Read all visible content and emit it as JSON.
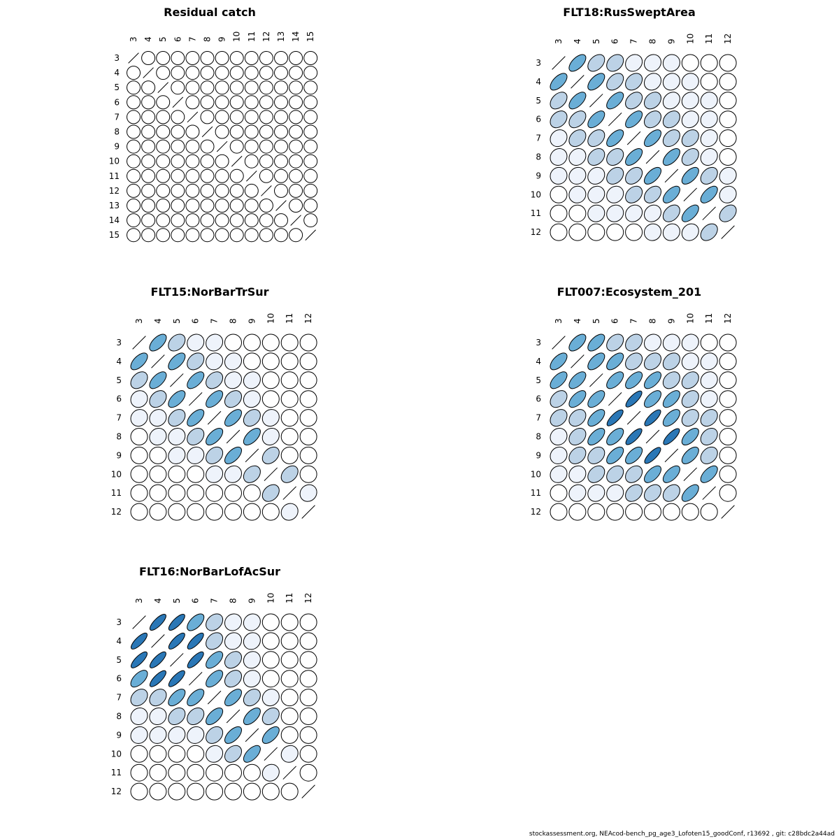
{
  "colors": {
    "light": "#eef3fb",
    "mid": "#bcd2e6",
    "strong": "#6aaed6",
    "dark": "#2a77b6",
    "none": "#ffffff",
    "stroke": "#000000"
  },
  "chart_data": [
    {
      "type": "heatmap",
      "style": "ellipse correlation matrix",
      "title": "Residual catch",
      "labels": [
        "3",
        "4",
        "5",
        "6",
        "7",
        "8",
        "9",
        "10",
        "11",
        "12",
        "13",
        "14",
        "15"
      ],
      "correlation_rule": "all off-diagonal correlations ~0; diagonal drawn as line",
      "correlations": []
    },
    {
      "type": "heatmap",
      "style": "ellipse correlation matrix",
      "title": "FLT18:RusSweptArea",
      "labels": [
        "3",
        "4",
        "5",
        "6",
        "7",
        "8",
        "9",
        "10",
        "11",
        "12"
      ],
      "correlations": [
        [
          null,
          0.6,
          0.4,
          0.3,
          0.15,
          0.1,
          0.05,
          0.0,
          0.0,
          0.0
        ],
        [
          0.6,
          null,
          0.6,
          0.4,
          0.3,
          0.15,
          0.1,
          0.05,
          0.0,
          0.0
        ],
        [
          0.4,
          0.6,
          null,
          0.6,
          0.35,
          0.3,
          0.2,
          0.1,
          0.05,
          0.0
        ],
        [
          0.3,
          0.4,
          0.6,
          null,
          0.6,
          0.3,
          0.3,
          0.15,
          0.1,
          0.0
        ],
        [
          0.15,
          0.3,
          0.35,
          0.6,
          null,
          0.6,
          0.35,
          0.3,
          0.15,
          0.0
        ],
        [
          0.1,
          0.15,
          0.3,
          0.3,
          0.6,
          null,
          0.6,
          0.35,
          0.15,
          0.0
        ],
        [
          0.05,
          0.1,
          0.15,
          0.3,
          0.35,
          0.6,
          null,
          0.6,
          0.35,
          0.1
        ],
        [
          0.0,
          0.05,
          0.1,
          0.15,
          0.3,
          0.35,
          0.6,
          null,
          0.6,
          0.1
        ],
        [
          0.0,
          0.0,
          0.05,
          0.1,
          0.15,
          0.15,
          0.35,
          0.6,
          null,
          0.35
        ],
        [
          0.0,
          0.0,
          0.0,
          0.0,
          0.0,
          0.05,
          0.1,
          0.15,
          0.35,
          null
        ]
      ]
    },
    {
      "type": "heatmap",
      "style": "ellipse correlation matrix",
      "title": "FLT15:NorBarTrSur",
      "labels": [
        "3",
        "4",
        "5",
        "6",
        "7",
        "8",
        "9",
        "10",
        "11",
        "12"
      ],
      "correlations": [
        [
          null,
          0.6,
          0.35,
          0.1,
          0.1,
          0.0,
          0.0,
          0.0,
          0.0,
          0.0
        ],
        [
          0.6,
          null,
          0.6,
          0.3,
          0.1,
          0.1,
          0.0,
          0.0,
          0.0,
          0.0
        ],
        [
          0.35,
          0.6,
          null,
          0.6,
          0.3,
          0.1,
          0.1,
          0.0,
          0.0,
          0.0
        ],
        [
          0.1,
          0.3,
          0.6,
          null,
          0.6,
          0.3,
          0.1,
          0.0,
          0.0,
          0.0
        ],
        [
          0.1,
          0.1,
          0.3,
          0.6,
          null,
          0.6,
          0.3,
          0.1,
          0.0,
          0.0
        ],
        [
          0.0,
          0.1,
          0.1,
          0.3,
          0.6,
          null,
          0.6,
          0.15,
          0.0,
          0.0
        ],
        [
          0.0,
          0.0,
          0.1,
          0.1,
          0.3,
          0.6,
          null,
          0.35,
          0.0,
          0.0
        ],
        [
          0.0,
          0.0,
          0.0,
          0.0,
          0.1,
          0.1,
          0.3,
          null,
          0.35,
          0.0
        ],
        [
          0.0,
          0.0,
          0.0,
          0.0,
          0.0,
          0.0,
          0.0,
          0.3,
          null,
          0.1
        ],
        [
          0.0,
          0.0,
          0.0,
          0.0,
          0.0,
          0.0,
          0.0,
          0.0,
          0.1,
          null
        ]
      ]
    },
    {
      "type": "heatmap",
      "style": "ellipse correlation matrix",
      "title": "FLT007:Ecosystem_201",
      "labels": [
        "3",
        "4",
        "5",
        "6",
        "7",
        "8",
        "9",
        "10",
        "11",
        "12"
      ],
      "correlations": [
        [
          null,
          0.6,
          0.6,
          0.35,
          0.3,
          0.1,
          0.1,
          0.1,
          0.0,
          0.0
        ],
        [
          0.6,
          null,
          0.6,
          0.6,
          0.3,
          0.3,
          0.3,
          0.1,
          0.1,
          0.0
        ],
        [
          0.6,
          0.6,
          null,
          0.6,
          0.6,
          0.6,
          0.3,
          0.3,
          0.1,
          0.0
        ],
        [
          0.35,
          0.6,
          0.6,
          null,
          0.8,
          0.6,
          0.6,
          0.3,
          0.1,
          0.0
        ],
        [
          0.3,
          0.3,
          0.6,
          0.8,
          null,
          0.8,
          0.6,
          0.3,
          0.3,
          0.0
        ],
        [
          0.1,
          0.3,
          0.6,
          0.6,
          0.8,
          null,
          0.8,
          0.6,
          0.3,
          0.0
        ],
        [
          0.1,
          0.3,
          0.3,
          0.6,
          0.6,
          0.8,
          null,
          0.6,
          0.3,
          0.0
        ],
        [
          0.1,
          0.1,
          0.3,
          0.3,
          0.3,
          0.6,
          0.6,
          null,
          0.6,
          0.0
        ],
        [
          0.0,
          0.1,
          0.1,
          0.1,
          0.3,
          0.3,
          0.3,
          0.6,
          null,
          0.0
        ],
        [
          0.0,
          0.0,
          0.0,
          0.0,
          0.0,
          0.0,
          0.0,
          0.0,
          0.0,
          null
        ]
      ]
    },
    {
      "type": "heatmap",
      "style": "ellipse correlation matrix",
      "title": "FLT16:NorBarLofAcSur",
      "labels": [
        "3",
        "4",
        "5",
        "6",
        "7",
        "8",
        "9",
        "10",
        "11",
        "12"
      ],
      "correlations": [
        [
          null,
          0.8,
          0.8,
          0.6,
          0.3,
          0.1,
          0.1,
          0.0,
          0.0,
          0.0
        ],
        [
          0.8,
          null,
          0.8,
          0.8,
          0.3,
          0.1,
          0.1,
          0.0,
          0.0,
          0.0
        ],
        [
          0.8,
          0.8,
          null,
          0.8,
          0.6,
          0.3,
          0.1,
          0.0,
          0.0,
          0.0
        ],
        [
          0.6,
          0.8,
          0.8,
          null,
          0.6,
          0.3,
          0.1,
          0.0,
          0.0,
          0.0
        ],
        [
          0.3,
          0.3,
          0.6,
          0.6,
          null,
          0.6,
          0.3,
          0.1,
          0.0,
          0.0
        ],
        [
          0.1,
          0.1,
          0.3,
          0.3,
          0.6,
          null,
          0.6,
          0.3,
          0.0,
          0.0
        ],
        [
          0.1,
          0.1,
          0.1,
          0.1,
          0.3,
          0.6,
          null,
          0.6,
          0.0,
          0.0
        ],
        [
          0.0,
          0.0,
          0.0,
          0.0,
          0.1,
          0.3,
          0.6,
          null,
          0.1,
          0.0
        ],
        [
          0.0,
          0.0,
          0.0,
          0.0,
          0.0,
          0.0,
          0.0,
          0.1,
          null,
          0.0
        ],
        [
          0.0,
          0.0,
          0.0,
          0.0,
          0.0,
          0.0,
          0.0,
          0.0,
          0.0,
          null
        ]
      ]
    }
  ],
  "footer": "stockassessment.org, NEAcod-bench_pg_age3_Lofoten15_goodConf, r13692 , git: c28bdc2a44ad"
}
